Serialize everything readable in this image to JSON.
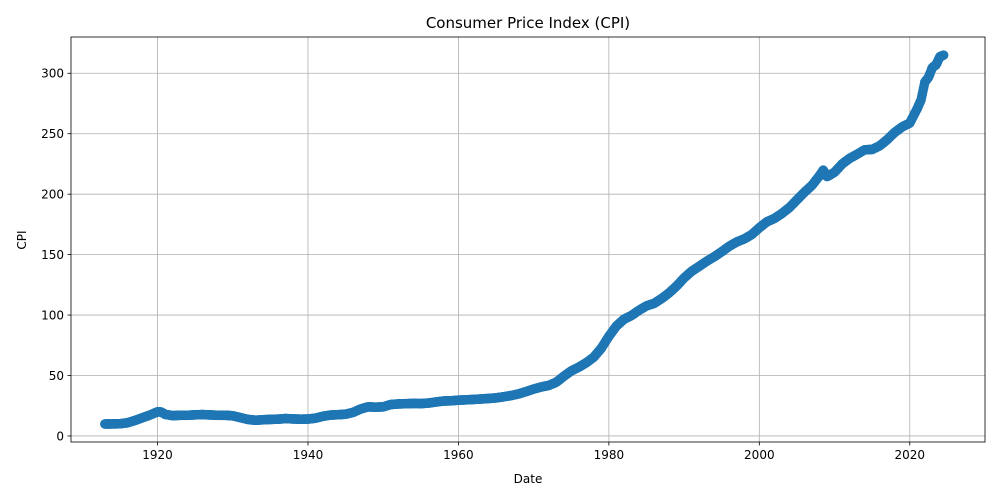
{
  "chart_data": {
    "type": "scatter",
    "title": "Consumer Price Index (CPI)",
    "xlabel": "Date",
    "ylabel": "CPI",
    "xlim": [
      1908.5,
      2030
    ],
    "ylim": [
      -5,
      330
    ],
    "x_ticks": [
      1920,
      1940,
      1960,
      1980,
      2000,
      2020
    ],
    "y_ticks": [
      0,
      50,
      100,
      150,
      200,
      250,
      300
    ],
    "grid": true,
    "marker_color": "#1f77b4",
    "series": [
      {
        "x": [
          1913,
          1914,
          1915,
          1916,
          1917,
          1918,
          1919,
          1920,
          1920.5,
          1921,
          1922,
          1923,
          1924,
          1925,
          1926,
          1927,
          1928,
          1929,
          1930,
          1931,
          1932,
          1933,
          1934,
          1935,
          1936,
          1937,
          1938,
          1939,
          1940,
          1941,
          1942,
          1943,
          1944,
          1945,
          1946,
          1947,
          1948,
          1949,
          1950,
          1951,
          1952,
          1953,
          1954,
          1955,
          1956,
          1957,
          1958,
          1959,
          1960,
          1961,
          1962,
          1963,
          1964,
          1965,
          1966,
          1967,
          1968,
          1969,
          1970,
          1971,
          1972,
          1973,
          1974,
          1975,
          1976,
          1977,
          1978,
          1979,
          1980,
          1981,
          1982,
          1983,
          1984,
          1985,
          1986,
          1987,
          1988,
          1989,
          1990,
          1991,
          1992,
          1993,
          1994,
          1995,
          1996,
          1997,
          1998,
          1999,
          2000,
          2001,
          2002,
          2003,
          2004,
          2005,
          2006,
          2007,
          2008,
          2008.5,
          2009,
          2010,
          2011,
          2012,
          2013,
          2014,
          2015,
          2016,
          2017,
          2018,
          2019,
          2020,
          2021,
          2021.5,
          2022,
          2022.5,
          2023,
          2023.5,
          2024,
          2024.5
        ],
        "y": [
          9.9,
          10.0,
          10.1,
          10.9,
          12.8,
          15.1,
          17.3,
          20.0,
          19.8,
          17.9,
          16.8,
          17.1,
          17.1,
          17.5,
          17.7,
          17.4,
          17.1,
          17.1,
          16.7,
          15.2,
          13.7,
          13.0,
          13.4,
          13.7,
          13.9,
          14.4,
          14.1,
          13.9,
          14.0,
          14.7,
          16.3,
          17.3,
          17.6,
          18.0,
          19.5,
          22.3,
          24.1,
          23.8,
          24.1,
          26.0,
          26.5,
          26.7,
          26.9,
          26.8,
          27.2,
          28.1,
          28.9,
          29.1,
          29.6,
          29.9,
          30.2,
          30.6,
          31.0,
          31.5,
          32.4,
          33.4,
          34.8,
          36.7,
          38.8,
          40.5,
          41.8,
          44.4,
          49.3,
          53.8,
          56.9,
          60.6,
          65.2,
          72.6,
          82.4,
          90.9,
          96.5,
          99.6,
          103.9,
          107.6,
          109.6,
          113.6,
          118.3,
          124.0,
          130.7,
          136.2,
          140.3,
          144.5,
          148.2,
          152.4,
          156.9,
          160.5,
          163.0,
          166.6,
          172.2,
          177.1,
          179.9,
          184.0,
          188.9,
          195.3,
          201.6,
          207.3,
          215.3,
          219.9,
          214.5,
          218.1,
          224.9,
          229.6,
          233.0,
          236.7,
          237.0,
          240.0,
          245.1,
          251.1,
          255.7,
          258.8,
          270.9,
          278.0,
          292.7,
          296.8,
          304.7,
          307.0,
          313.7,
          315.0
        ]
      }
    ]
  }
}
